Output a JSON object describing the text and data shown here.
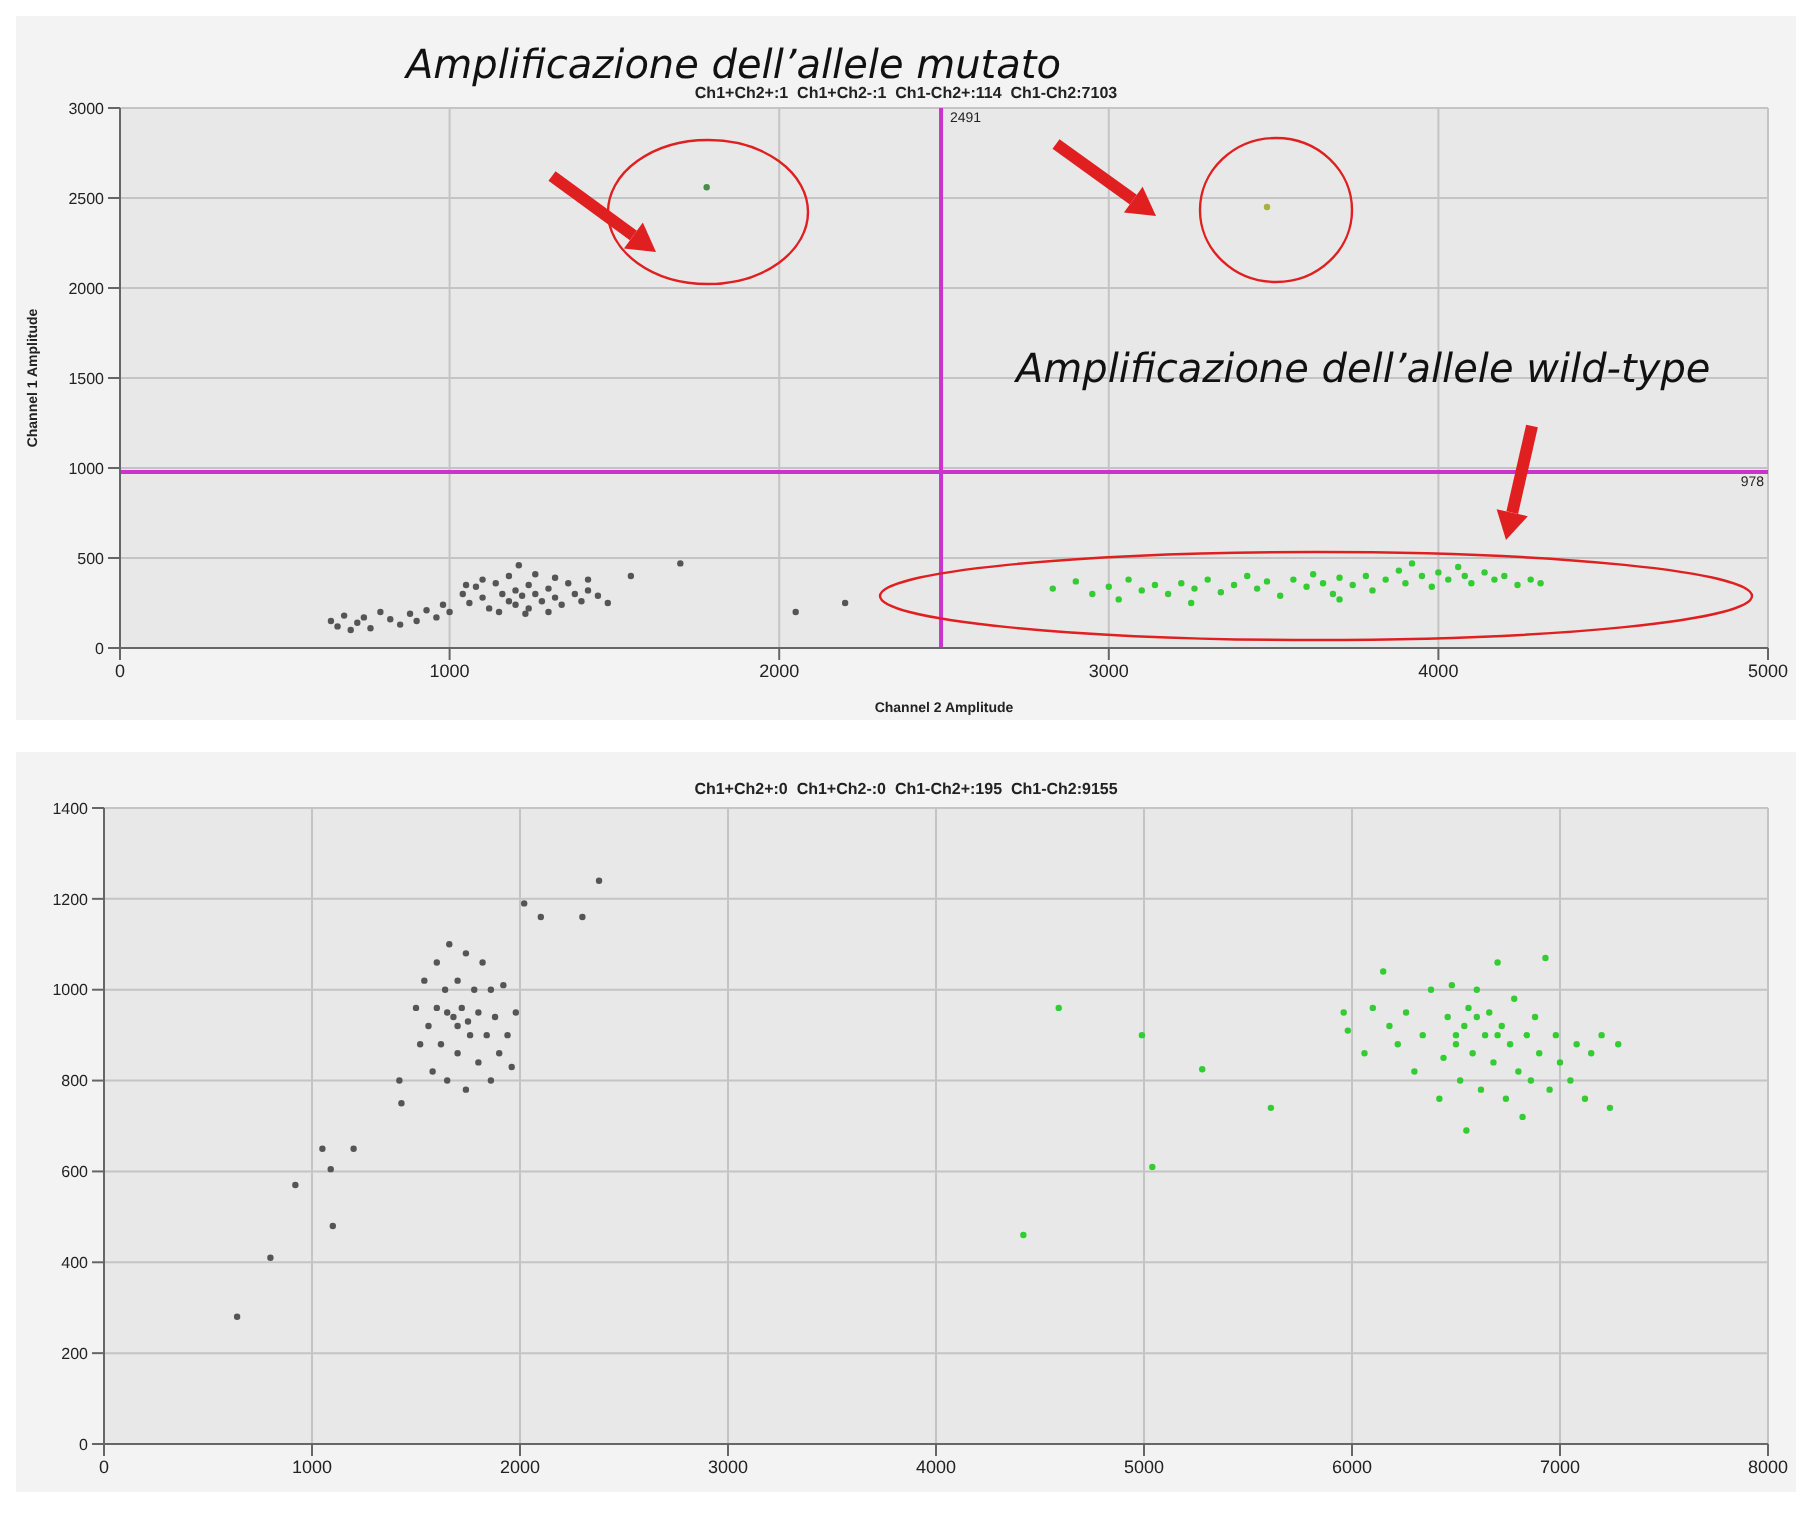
{
  "chart_data": [
    {
      "type": "scatter",
      "title": "Ch1+Ch2+:1  Ch1+Ch2-:1  Ch1-Ch2+:114  Ch1-Ch2:7103",
      "xlabel": "Channel 2 Amplitude",
      "ylabel": "Channel 1 Amplitude",
      "annotations": [
        "Amplificazione dell’allele mutato",
        "Amplificazione dell’allele wild-type"
      ],
      "xlim": [
        0,
        5000
      ],
      "xticks": [
        0,
        1000,
        2000,
        3000,
        4000,
        5000
      ],
      "ylim": [
        0,
        3000
      ],
      "yticks": [
        0,
        500,
        1000,
        1500,
        2000,
        2500,
        3000
      ],
      "grid": true,
      "marker": "circle",
      "ref_lines": [
        {
          "axis": "x",
          "value": 2491,
          "label": "2491",
          "color": "#cc33cc"
        },
        {
          "axis": "y",
          "value": 978,
          "label": "978",
          "color": "#cc33cc"
        }
      ],
      "series": [
        {
          "color": "#555555",
          "x": [
            640,
            660,
            680,
            700,
            720,
            740,
            760,
            790,
            820,
            850,
            880,
            900,
            930,
            960,
            980,
            1000,
            1040,
            1060,
            1080,
            1100,
            1120,
            1140,
            1160,
            1180,
            1200,
            1200,
            1220,
            1240,
            1240,
            1260,
            1280,
            1300,
            1320,
            1340,
            1360,
            1380,
            1400,
            1420,
            1450,
            1480,
            1100,
            1180,
            1260,
            1320,
            1150,
            1230,
            1300,
            1210,
            1050,
            1420,
            1550,
            1700,
            2050,
            2200
          ],
          "values": [
            150,
            120,
            180,
            100,
            140,
            170,
            110,
            200,
            160,
            130,
            190,
            150,
            210,
            170,
            240,
            200,
            300,
            250,
            340,
            280,
            220,
            360,
            300,
            260,
            320,
            240,
            290,
            350,
            220,
            300,
            260,
            330,
            280,
            240,
            360,
            300,
            260,
            320,
            290,
            250,
            380,
            400,
            410,
            390,
            200,
            190,
            200,
            460,
            350,
            380,
            400,
            470,
            200,
            250
          ]
        },
        {
          "color": "#33cc33",
          "x": [
            2830,
            2900,
            2950,
            3000,
            3030,
            3060,
            3100,
            3140,
            3180,
            3220,
            3260,
            3300,
            3340,
            3380,
            3420,
            3450,
            3480,
            3520,
            3560,
            3600,
            3620,
            3650,
            3680,
            3700,
            3740,
            3780,
            3800,
            3840,
            3880,
            3900,
            3920,
            3950,
            3980,
            4000,
            4030,
            4060,
            4080,
            4100,
            4140,
            4170,
            4200,
            4240,
            4280,
            4310,
            3250,
            3700
          ],
          "values": [
            330,
            370,
            300,
            340,
            270,
            380,
            320,
            350,
            300,
            360,
            330,
            380,
            310,
            350,
            400,
            330,
            370,
            290,
            380,
            340,
            410,
            360,
            300,
            390,
            350,
            400,
            320,
            380,
            430,
            360,
            470,
            400,
            340,
            420,
            380,
            450,
            400,
            360,
            420,
            380,
            400,
            350,
            380,
            360,
            250,
            270
          ]
        },
        {
          "color": "#4a8a4a",
          "x": [
            1780
          ],
          "values": [
            2560
          ]
        },
        {
          "color": "#a8b040",
          "x": [
            3480
          ],
          "values": [
            2450
          ]
        }
      ]
    },
    {
      "type": "scatter",
      "title": "Ch1+Ch2+:0  Ch1+Ch2-:0  Ch1-Ch2+:195  Ch1-Ch2:9155",
      "xlim": [
        0,
        8000
      ],
      "xticks": [
        0,
        1000,
        2000,
        3000,
        4000,
        5000,
        6000,
        7000,
        8000
      ],
      "ylim": [
        0,
        1400
      ],
      "yticks": [
        0,
        200,
        400,
        600,
        800,
        1000,
        1200,
        1400
      ],
      "grid": true,
      "marker": "circle",
      "series": [
        {
          "color": "#555555",
          "x": [
            1500,
            1520,
            1540,
            1560,
            1580,
            1600,
            1600,
            1620,
            1640,
            1650,
            1660,
            1680,
            1700,
            1700,
            1720,
            1740,
            1740,
            1760,
            1780,
            1800,
            1800,
            1820,
            1840,
            1860,
            1860,
            1880,
            1900,
            1920,
            1940,
            1960,
            1980,
            1700,
            1650,
            1750,
            1420,
            1430,
            2020,
            2100,
            2300,
            2380,
            640,
            800,
            920,
            1050,
            1090,
            1100,
            1200
          ],
          "values": [
            960,
            880,
            1020,
            920,
            820,
            1060,
            960,
            880,
            1000,
            800,
            1100,
            940,
            860,
            1020,
            960,
            780,
            1080,
            900,
            1000,
            840,
            950,
            1060,
            900,
            800,
            1000,
            940,
            860,
            1010,
            900,
            830,
            950,
            920,
            950,
            930,
            800,
            750,
            1190,
            1160,
            1160,
            1240,
            280,
            410,
            570,
            650,
            605,
            480,
            650
          ]
        },
        {
          "color": "#33cc33",
          "x": [
            4420,
            4590,
            4990,
            5040,
            5280,
            5610,
            5960,
            5980,
            6060,
            6100,
            6150,
            6180,
            6220,
            6260,
            6300,
            6340,
            6380,
            6420,
            6440,
            6460,
            6480,
            6500,
            6520,
            6540,
            6550,
            6560,
            6580,
            6600,
            6620,
            6640,
            6660,
            6680,
            6700,
            6720,
            6740,
            6760,
            6780,
            6800,
            6820,
            6840,
            6860,
            6880,
            6900,
            6930,
            6950,
            6980,
            7000,
            7050,
            7080,
            7120,
            7150,
            7200,
            7240,
            7280,
            6600,
            6700,
            6500
          ],
          "values": [
            460,
            960,
            900,
            610,
            825,
            740,
            950,
            910,
            860,
            960,
            1040,
            920,
            880,
            950,
            820,
            900,
            1000,
            760,
            850,
            940,
            1010,
            880,
            800,
            920,
            690,
            960,
            860,
            1000,
            780,
            900,
            950,
            840,
            1060,
            920,
            760,
            880,
            980,
            820,
            720,
            900,
            800,
            940,
            860,
            1070,
            780,
            900,
            840,
            800,
            880,
            760,
            860,
            900,
            740,
            880,
            940,
            900,
            900
          ]
        }
      ]
    }
  ]
}
